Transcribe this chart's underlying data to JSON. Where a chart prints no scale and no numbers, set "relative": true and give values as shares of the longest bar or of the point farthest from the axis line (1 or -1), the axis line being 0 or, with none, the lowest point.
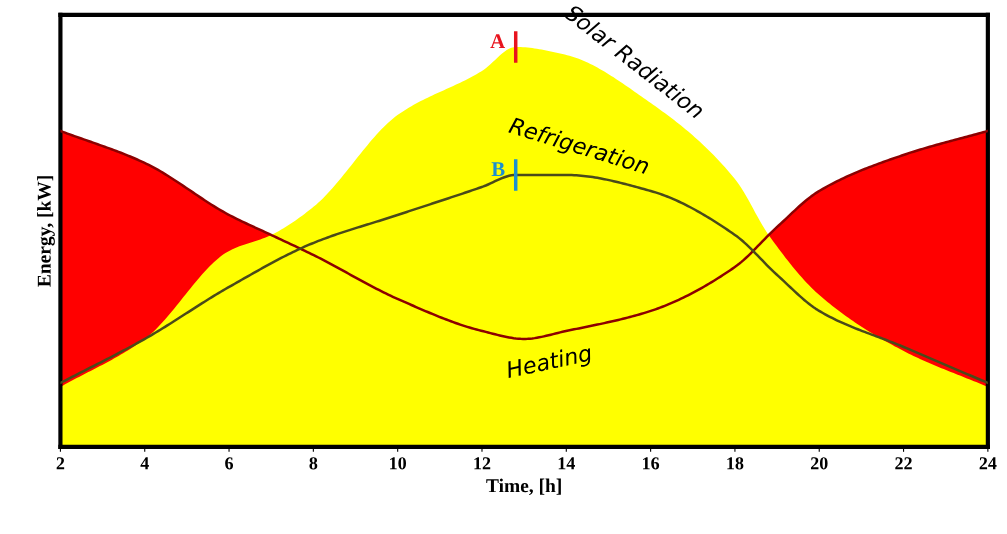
{
  "chart_data": {
    "type": "area",
    "relative": true,
    "xlabel": "Time, [h]",
    "ylabel": "Energy, [kW]",
    "xlim": [
      2,
      24
    ],
    "xticks": [
      2,
      4,
      6,
      8,
      10,
      12,
      14,
      16,
      18,
      20,
      22,
      24
    ],
    "grid": false,
    "series": [
      {
        "name": "Heating",
        "color": "#ff0000",
        "x": [
          2,
          4,
          6,
          7,
          8,
          10,
          12,
          13,
          14,
          16,
          18,
          19,
          20,
          22,
          24
        ],
        "values": [
          0.79,
          0.71,
          0.58,
          0.53,
          0.48,
          0.37,
          0.29,
          0.27,
          0.29,
          0.34,
          0.45,
          0.55,
          0.64,
          0.73,
          0.79
        ]
      },
      {
        "name": "Solar Radiation",
        "color": "#ffff00",
        "x": [
          2,
          4,
          6,
          7,
          8,
          10,
          12,
          12.8,
          14,
          16,
          18,
          18.8,
          20,
          22,
          24
        ],
        "values": [
          0.15,
          0.27,
          0.49,
          0.53,
          0.6,
          0.83,
          0.94,
          1.0,
          0.98,
          0.86,
          0.67,
          0.53,
          0.38,
          0.24,
          0.15
        ]
      },
      {
        "name": "Refrigeration",
        "type": "line",
        "color": "#4a4a1a",
        "x": [
          2,
          4,
          6,
          8,
          10,
          12,
          12.8,
          14,
          16,
          18,
          19,
          20,
          22,
          24
        ],
        "values": [
          0.16,
          0.27,
          0.4,
          0.51,
          0.58,
          0.65,
          0.68,
          0.68,
          0.64,
          0.53,
          0.43,
          0.34,
          0.25,
          0.16
        ]
      }
    ],
    "annotations": [
      {
        "text": "A",
        "x": 12.8,
        "y": 1.0
      },
      {
        "text": "B",
        "x": 12.8,
        "y": 0.68
      }
    ]
  }
}
